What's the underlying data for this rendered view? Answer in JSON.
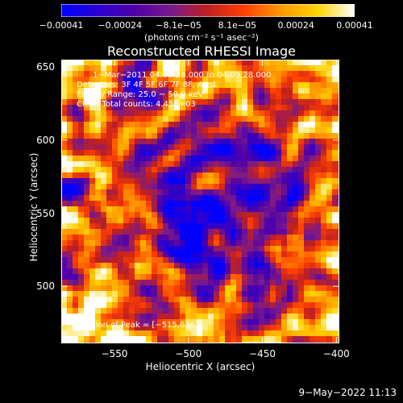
{
  "chart_data": {
    "type": "heatmap",
    "title": "Reconstructed RHESSI Image",
    "xlabel": "Heliocentric X (arcsec)",
    "ylabel": "Heliocentric Y (arcsec)",
    "xlim": [
      -586,
      -398
    ],
    "ylim": [
      461,
      655
    ],
    "x_ticks": [
      -550,
      -500,
      -450,
      -400
    ],
    "x_tick_labels": [
      "−550",
      "−500",
      "−450",
      "−400"
    ],
    "y_ticks": [
      500,
      550,
      600,
      650
    ],
    "y_tick_labels": [
      "500",
      "550",
      "600",
      "650"
    ],
    "colorbar": {
      "ticks": [
        "−0.00041",
        "−0.00024",
        "−8.1e−05",
        "8.1e−05",
        "0.00024",
        "0.00041"
      ],
      "unit_label": "(photons cm⁻² s⁻¹ asec⁻²)",
      "colors": [
        "#0000ff",
        "#2a00d0",
        "#5000a8",
        "#7a1a8a",
        "#c02020",
        "#ff4000",
        "#ff9a00",
        "#ffd400",
        "#ffffff"
      ]
    },
    "annotations": {
      "time_range": "1−Mar−2011 04:09:28.000 to 04:09:28.000",
      "detectors": "Detectors: 3F 4F 5F 6F 7F 8F, Att 1",
      "energy_range": "Energy Range: 25.0 − 50.0 keV",
      "clean_counts": "Clean     Total counts: 4.45E+03",
      "peak": "Position of Peak = [−515,636]"
    }
  },
  "footer": {
    "timestamp": "9−May−2022 11:13"
  }
}
